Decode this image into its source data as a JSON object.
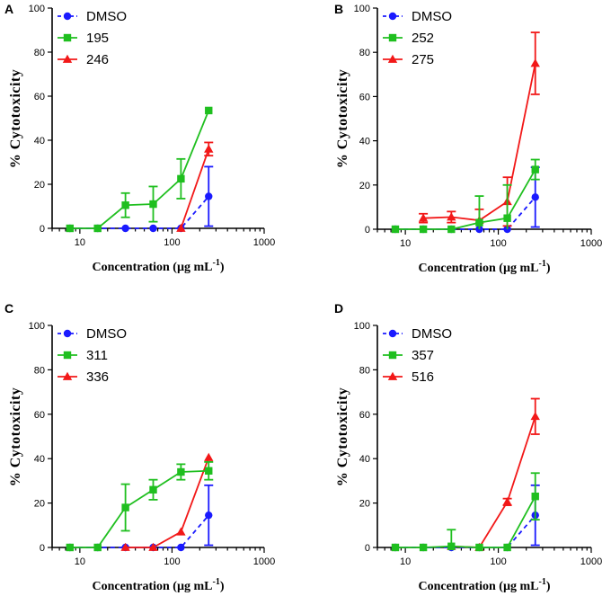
{
  "figure": {
    "colors": {
      "DMSO": "#1a1aff",
      "green": "#1fbf1f",
      "red": "#f21818"
    }
  },
  "chart_data": [
    {
      "panel": "A",
      "type": "line",
      "xscale": "log",
      "xlim": [
        5,
        1000
      ],
      "ylim": [
        0,
        100
      ],
      "xticks": [
        "10",
        "100",
        "1000"
      ],
      "yticks": [
        "0",
        "20",
        "40",
        "60",
        "80",
        "100"
      ],
      "xlabel": "Concentration (µg mL",
      "xlabel_sup": "-1",
      "xlabel_end": ")",
      "ylabel": "%  Cytotoxicity",
      "series": [
        {
          "name": "DMSO",
          "marker": "circle",
          "dashed": true,
          "color": "#1a1aff",
          "x": [
            7.8,
            15.6,
            31.25,
            62.5,
            125,
            250
          ],
          "y": [
            0,
            0,
            0,
            0,
            0,
            14.5
          ],
          "err": [
            0,
            0,
            0,
            0,
            0,
            13.5
          ]
        },
        {
          "name": "195",
          "marker": "square",
          "dashed": false,
          "color": "#1fbf1f",
          "x": [
            7.8,
            15.6,
            31.25,
            62.5,
            125,
            250
          ],
          "y": [
            0,
            0,
            10.5,
            11,
            22.5,
            53.5
          ],
          "err": [
            0,
            0,
            5.5,
            8,
            9,
            0
          ]
        },
        {
          "name": "246",
          "marker": "triangle",
          "dashed": false,
          "color": "#f21818",
          "x": [
            125,
            250
          ],
          "y": [
            0,
            36
          ],
          "err": [
            0,
            3
          ]
        }
      ]
    },
    {
      "panel": "B",
      "type": "line",
      "xscale": "log",
      "xlim": [
        5,
        1000
      ],
      "ylim": [
        0,
        100
      ],
      "xticks": [
        "10",
        "100",
        "1000"
      ],
      "yticks": [
        "0",
        "20",
        "40",
        "60",
        "80",
        "100"
      ],
      "xlabel": "Concentration (µg mL",
      "xlabel_sup": "-1",
      "xlabel_end": ")",
      "ylabel": "%  Cytotoxicity",
      "series": [
        {
          "name": "DMSO",
          "marker": "circle",
          "dashed": true,
          "color": "#1a1aff",
          "x": [
            7.8,
            15.6,
            31.25,
            62.5,
            125,
            250
          ],
          "y": [
            0,
            0,
            0,
            0,
            0,
            14.5
          ],
          "err": [
            0,
            0,
            0,
            0,
            0,
            13.5
          ]
        },
        {
          "name": "252",
          "marker": "square",
          "dashed": false,
          "color": "#1fbf1f",
          "x": [
            7.8,
            15.6,
            31.25,
            62.5,
            125,
            250
          ],
          "y": [
            0,
            0,
            0,
            3,
            5,
            27
          ],
          "err": [
            0,
            0,
            0,
            12,
            15,
            4.5
          ]
        },
        {
          "name": "275",
          "marker": "triangle",
          "dashed": false,
          "color": "#f21818",
          "x": [
            15.6,
            31.25,
            62.5,
            125,
            250
          ],
          "y": [
            5,
            5.5,
            4,
            12.5,
            75
          ],
          "err": [
            2,
            2.5,
            5,
            11,
            14
          ]
        }
      ]
    },
    {
      "panel": "C",
      "type": "line",
      "xscale": "log",
      "xlim": [
        5,
        1000
      ],
      "ylim": [
        0,
        100
      ],
      "xticks": [
        "10",
        "100",
        "1000"
      ],
      "yticks": [
        "0",
        "20",
        "40",
        "60",
        "80",
        "100"
      ],
      "xlabel": "Concentration (µg mL",
      "xlabel_sup": "-1",
      "xlabel_end": ")",
      "ylabel": "%  Cytotoxicity",
      "series": [
        {
          "name": "DMSO",
          "marker": "circle",
          "dashed": true,
          "color": "#1a1aff",
          "x": [
            7.8,
            15.6,
            31.25,
            62.5,
            125,
            250
          ],
          "y": [
            0,
            0,
            0,
            0,
            0,
            14.5
          ],
          "err": [
            0,
            0,
            0,
            0,
            0,
            13.5
          ]
        },
        {
          "name": "311",
          "marker": "square",
          "dashed": false,
          "color": "#1fbf1f",
          "x": [
            7.8,
            15.6,
            31.25,
            62.5,
            125,
            250
          ],
          "y": [
            0,
            0,
            18,
            26,
            34,
            34.5
          ],
          "err": [
            0,
            0,
            10.5,
            4.5,
            3.5,
            4
          ]
        },
        {
          "name": "336",
          "marker": "triangle",
          "dashed": false,
          "color": "#f21818",
          "x": [
            31.25,
            62.5,
            125,
            250
          ],
          "y": [
            0,
            0,
            7,
            40.5
          ],
          "err": [
            0,
            0,
            0,
            0
          ]
        }
      ]
    },
    {
      "panel": "D",
      "type": "line",
      "xscale": "log",
      "xlim": [
        5,
        1000
      ],
      "ylim": [
        0,
        100
      ],
      "xticks": [
        "10",
        "100",
        "1000"
      ],
      "yticks": [
        "0",
        "20",
        "40",
        "60",
        "80",
        "100"
      ],
      "xlabel": "Concentration (µg mL",
      "xlabel_sup": "-1",
      "xlabel_end": ")",
      "ylabel": "%  Cytotoxicity",
      "series": [
        {
          "name": "DMSO",
          "marker": "circle",
          "dashed": true,
          "color": "#1a1aff",
          "x": [
            7.8,
            15.6,
            31.25,
            62.5,
            125,
            250
          ],
          "y": [
            0,
            0,
            0,
            0,
            0,
            14.5
          ],
          "err": [
            0,
            0,
            0,
            0,
            0,
            13.5
          ]
        },
        {
          "name": "357",
          "marker": "square",
          "dashed": false,
          "color": "#1fbf1f",
          "x": [
            7.8,
            15.6,
            31.25,
            62.5,
            125,
            250
          ],
          "y": [
            0,
            0,
            0.5,
            0,
            0,
            23
          ],
          "err": [
            0,
            0,
            7.5,
            0,
            0,
            10.5
          ]
        },
        {
          "name": "516",
          "marker": "triangle",
          "dashed": false,
          "color": "#f21818",
          "x": [
            31.25,
            62.5,
            125,
            250
          ],
          "y": [
            0.5,
            0,
            20.5,
            59
          ],
          "err": [
            0,
            0,
            1.5,
            8
          ]
        }
      ]
    }
  ]
}
